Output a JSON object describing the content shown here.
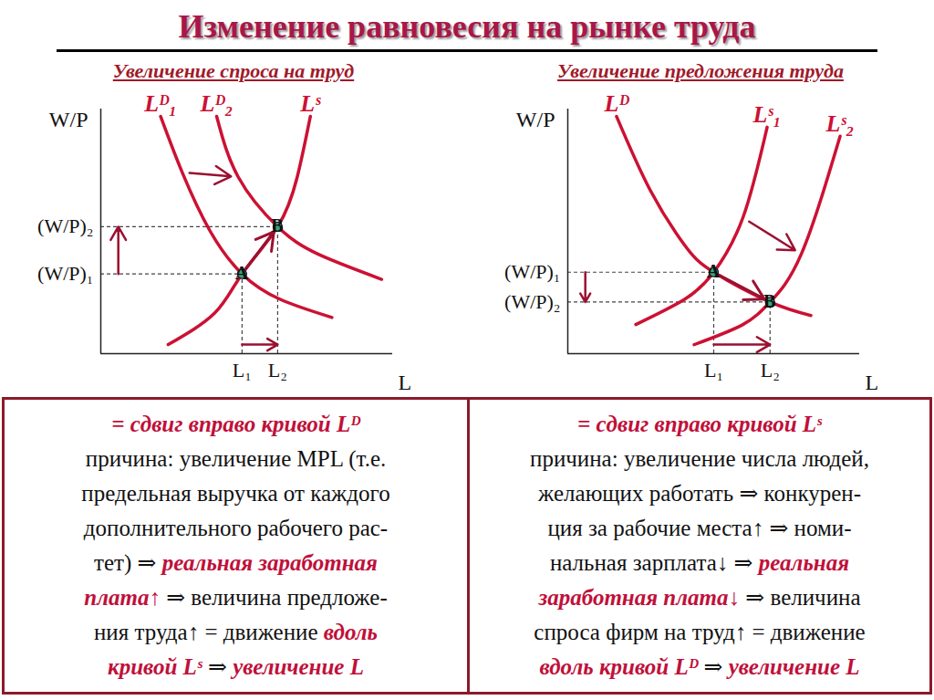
{
  "title": "Изменение равновесия на рынке труда",
  "chart_data": [
    {
      "type": "line",
      "title": "Увеличение спроса на труд",
      "xlabel": "L",
      "ylabel": "W/P",
      "xlim": [
        0,
        10
      ],
      "ylim": [
        0,
        10
      ],
      "xticks": [
        {
          "value": 4.84,
          "label": "L₁"
        },
        {
          "value": 6.06,
          "label": "L₂"
        }
      ],
      "yticks": [
        {
          "value": 3.26,
          "label": "(W/P)₁"
        },
        {
          "value": 5.19,
          "label": "(W/P)₂"
        }
      ],
      "series": [
        {
          "name": "Lᴰ₁",
          "color": "#cc1133",
          "x": [
            2.05,
            2.79,
            3.75,
            4.84,
            6.15,
            7.92
          ],
          "values": [
            9.7,
            7.41,
            5.0,
            3.26,
            2.22,
            1.48
          ]
        },
        {
          "name": "Lᴰ₂",
          "color": "#cc1133",
          "x": [
            3.97,
            4.71,
            6.06,
            7.44,
            9.62
          ],
          "values": [
            9.7,
            7.22,
            5.19,
            4.07,
            3.04
          ]
        },
        {
          "name": "Lˢ",
          "color": "#cc1133",
          "x": [
            2.31,
            3.91,
            4.84,
            6.06,
            6.73,
            7.18
          ],
          "values": [
            0.37,
            1.67,
            3.26,
            5.19,
            7.22,
            9.7
          ]
        }
      ],
      "points": [
        {
          "name": "A",
          "x": 4.84,
          "y": 3.26,
          "color": "#3aa57a"
        },
        {
          "name": "B",
          "x": 6.06,
          "y": 5.19,
          "color": "#3aa57a"
        }
      ],
      "caption": [
        [
          {
            "text": "= сдвиг вправо кривой Lᴰ",
            "color": "#c0103a"
          }
        ],
        [
          "причина: увеличение MPL (т.е."
        ],
        [
          "предельная выручка от каждого"
        ],
        [
          "дополнительного рабочего рас-"
        ],
        [
          "тет) ⇒ ",
          {
            "text": "реальная заработная",
            "color": "#c0103a"
          }
        ],
        [
          {
            "text": "плата↑",
            "color": "#c0103a"
          },
          " ⇒ величина предложе-"
        ],
        [
          "ния труда↑ = движение ",
          {
            "text": "вдоль",
            "color": "#c0103a"
          }
        ],
        [
          {
            "text": "кривой Lˢ",
            "color": "#c0103a"
          },
          " ⇒ ",
          {
            "text": "увеличение L",
            "color": "#c0103a"
          }
        ]
      ]
    },
    {
      "type": "line",
      "title": "Увеличение предложения труда",
      "xlabel": "L",
      "ylabel": "W/P",
      "xlim": [
        0,
        10
      ],
      "ylim": [
        0,
        10
      ],
      "xticks": [
        {
          "value": 5.0,
          "label": "L₁"
        },
        {
          "value": 6.93,
          "label": "L₂"
        }
      ],
      "yticks": [
        {
          "value": 3.33,
          "label": "(W/P)₁"
        },
        {
          "value": 2.11,
          "label": "(W/P)₂"
        }
      ],
      "series": [
        {
          "name": "Lᴰ",
          "color": "#cc1133",
          "x": [
            1.67,
            2.83,
            4.0,
            5.0,
            6.93,
            8.33
          ],
          "values": [
            9.7,
            6.67,
            4.44,
            3.33,
            2.11,
            1.56
          ]
        },
        {
          "name": "Lˢ₁",
          "color": "#cc1133",
          "x": [
            2.33,
            4.0,
            5.0,
            6.0,
            6.83
          ],
          "values": [
            1.19,
            2.22,
            3.33,
            5.56,
            9.26
          ]
        },
        {
          "name": "Lˢ₂",
          "color": "#cc1133",
          "x": [
            4.33,
            6.0,
            6.93,
            8.0,
            9.33
          ],
          "values": [
            0.37,
            1.19,
            2.11,
            4.07,
            8.89
          ]
        }
      ],
      "points": [
        {
          "name": "A",
          "x": 5.0,
          "y": 3.33,
          "color": "#3aa57a"
        },
        {
          "name": "B",
          "x": 6.93,
          "y": 2.11,
          "color": "#3aa57a"
        }
      ],
      "caption": [
        [
          {
            "text": "= сдвиг вправо кривой Lˢ",
            "color": "#c0103a"
          }
        ],
        [
          "причина: увеличение числа людей,"
        ],
        [
          "желающих работать ⇒ конкурен-"
        ],
        [
          "ция за рабочие места↑ ⇒ номи-"
        ],
        [
          "нальная зарплата↓ ⇒ ",
          {
            "text": "реальная",
            "color": "#c0103a"
          }
        ],
        [
          {
            "text": "заработная плата↓",
            "color": "#c0103a"
          },
          " ⇒ величина"
        ],
        [
          "спроса фирм на труд↑ = движение"
        ],
        [
          {
            "text": "вдоль кривой Lᴰ",
            "color": "#c0103a"
          },
          " ⇒ ",
          {
            "text": "увеличение L",
            "color": "#c0103a"
          }
        ]
      ]
    }
  ]
}
